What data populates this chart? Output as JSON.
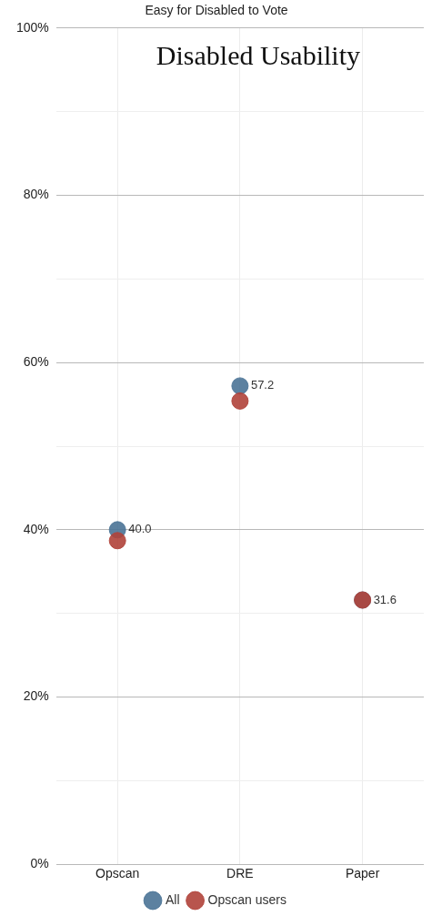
{
  "chart_data": {
    "type": "scatter",
    "title": "Easy for Disabled to Vote",
    "subtitle": "Disabled Usability",
    "categories": [
      "Opscan",
      "DRE",
      "Paper"
    ],
    "series": [
      {
        "name": "All",
        "color": "#4a7396",
        "values": [
          40.0,
          57.2,
          31.6
        ],
        "value_labels": [
          "40.0",
          "57.2",
          "31.6"
        ]
      },
      {
        "name": "Opscan users",
        "color": "#b0423a",
        "values": [
          38.7,
          55.4,
          31.6
        ]
      }
    ],
    "ylim": [
      0,
      100
    ],
    "yticks": [
      {
        "value": 0,
        "label": "0%"
      },
      {
        "value": 10,
        "label": null
      },
      {
        "value": 20,
        "label": "20%"
      },
      {
        "value": 30,
        "label": null
      },
      {
        "value": 40,
        "label": "40%"
      },
      {
        "value": 50,
        "label": null
      },
      {
        "value": 60,
        "label": "60%"
      },
      {
        "value": 70,
        "label": null
      },
      {
        "value": 80,
        "label": "80%"
      },
      {
        "value": 90,
        "label": null
      },
      {
        "value": 100,
        "label": "100%"
      }
    ],
    "grid": true,
    "legend": "bottom",
    "marker": "circle"
  }
}
